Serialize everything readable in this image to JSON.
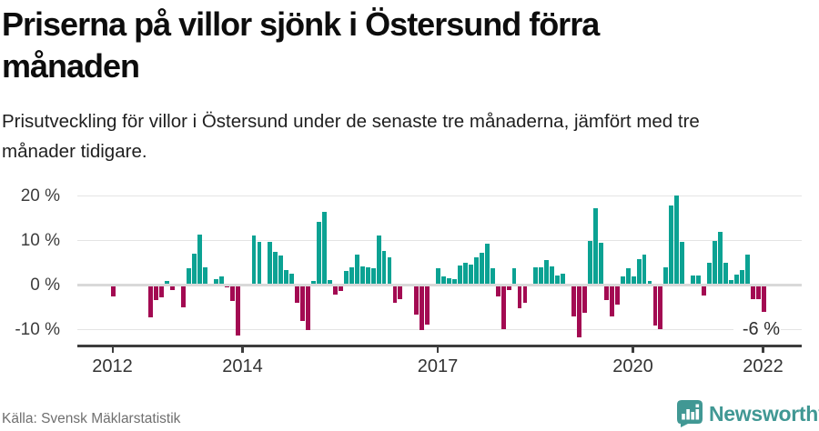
{
  "header": {
    "title": "Priserna på villor sjönk i Östersund förra månaden",
    "subtitle": "Prisutveckling för villor i Östersund under de senaste tre månaderna, jämfört med tre månader tidigare."
  },
  "footer": {
    "source": "Källa: Svensk Mäklarstatistik",
    "brand": "Newsworthy"
  },
  "chart_data": {
    "type": "bar",
    "title": "Priserna på villor sjönk i Östersund förra månaden",
    "subtitle": "Prisutveckling för villor i Östersund under de senaste tre månaderna, jämfört med tre månader tidigare.",
    "unit": "%",
    "frequency": "monthly",
    "start_month": "2012-01",
    "end_month": "2022-01",
    "ylim": [
      -13,
      21
    ],
    "grid": true,
    "y_ticks": [
      {
        "label": "20 %",
        "value": 20
      },
      {
        "label": "10 %",
        "value": 10
      },
      {
        "label": "0 %",
        "value": 0
      },
      {
        "label": "-10 %",
        "value": -10
      }
    ],
    "x_ticks": [
      {
        "label": "2012",
        "year": 2012
      },
      {
        "label": "2014",
        "year": 2014
      },
      {
        "label": "2017",
        "year": 2017
      },
      {
        "label": "2020",
        "year": 2020
      },
      {
        "label": "2022",
        "year": 2022
      }
    ],
    "annotation": {
      "text": "-6 %",
      "value": -6,
      "month": "2022-01"
    },
    "colors": {
      "positive": "#0ba293",
      "negative": "#a30a52",
      "brand": "#419894"
    },
    "values": [
      -2.4,
      null,
      null,
      null,
      null,
      null,
      null,
      -7.2,
      -3.2,
      -2.7,
      0.9,
      -1.0,
      null,
      -5.0,
      3.8,
      7.2,
      11.4,
      4.1,
      null,
      1.4,
      2.1,
      -0.5,
      -3.4,
      -11.3,
      null,
      null,
      11.1,
      9.8,
      null,
      9.7,
      7.6,
      6.7,
      3.4,
      2.6,
      -4.0,
      -8.0,
      -10.0,
      0.9,
      14.3,
      16.4,
      1.2,
      -2.1,
      -1.3,
      3.3,
      4.0,
      7.0,
      4.2,
      4.0,
      3.8,
      11.2,
      7.7,
      6.3,
      -3.8,
      -3.0,
      null,
      null,
      -6.5,
      -10.0,
      -8.7,
      null,
      3.8,
      1.9,
      1.6,
      1.4,
      4.5,
      5.0,
      4.7,
      6.3,
      7.4,
      9.3,
      3.8,
      -2.4,
      -9.9,
      -1.1,
      3.8,
      -5.2,
      -3.9,
      null,
      4.0,
      4.0,
      5.7,
      4.2,
      2.3,
      2.6,
      null,
      -7.0,
      -11.7,
      -6.1,
      9.9,
      17.3,
      9.5,
      -3.2,
      -7.0,
      -4.3,
      1.9,
      3.8,
      1.9,
      5.9,
      7.0,
      0.9,
      -8.9,
      -9.9,
      4.0,
      17.9,
      20.2,
      9.7,
      null,
      2.3,
      2.3,
      -2.2,
      5.0,
      9.9,
      12.1,
      5.0,
      1.2,
      2.4,
      3.5,
      7.0,
      -3.1,
      -3.1,
      -6.0
    ]
  }
}
